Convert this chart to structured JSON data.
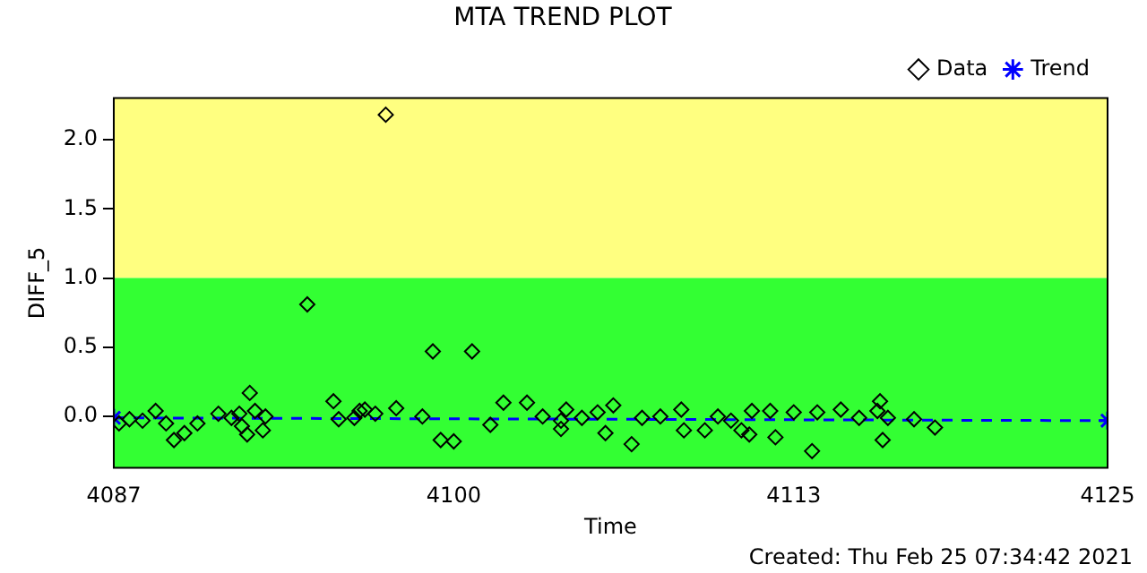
{
  "chart_data": {
    "type": "scatter",
    "title": "MTA TREND PLOT",
    "xlabel": "Time",
    "ylabel": "DIFF_5",
    "xlim": [
      4087,
      4125
    ],
    "xticks": [
      4087,
      4100,
      4113,
      4125
    ],
    "ylim": [
      -0.37,
      2.3
    ],
    "yticks": [
      {
        "value": 0,
        "label": "0.0"
      },
      {
        "value": 0.5,
        "label": "0.5"
      },
      {
        "value": 1,
        "label": "1.0"
      },
      {
        "value": 1.5,
        "label": "1.5"
      },
      {
        "value": 2,
        "label": "2.0"
      }
    ],
    "grid": false,
    "legend": "top right",
    "bands": [
      {
        "axis": "y",
        "from": 1,
        "to": 2.3,
        "color": "#ffff80"
      },
      {
        "axis": "y",
        "from": -0.37,
        "to": 1,
        "color": "#33ff33"
      }
    ],
    "annotations": [
      "Created: Thu Feb 25 07:34:42 2021"
    ],
    "series": [
      {
        "name": "Data",
        "type": "scatter",
        "color": "#000000",
        "marker": "diamond",
        "x": [
          4087.2,
          4087.6,
          4088.1,
          4088.6,
          4089.0,
          4089.3,
          4089.7,
          4090.2,
          4091.0,
          4091.5,
          4091.8,
          4091.9,
          4092.1,
          4092.2,
          4092.4,
          4092.7,
          4092.8,
          4094.4,
          4095.4,
          4095.6,
          4096.2,
          4096.4,
          4096.6,
          4097.0,
          4097.4,
          4097.8,
          4098.8,
          4099.2,
          4099.5,
          4100.0,
          4100.7,
          4101.4,
          4101.9,
          4102.8,
          4103.4,
          4104.1,
          4104.1,
          4104.3,
          4104.9,
          4105.5,
          4105.8,
          4106.1,
          4106.8,
          4107.2,
          4107.9,
          4108.7,
          4108.8,
          4109.6,
          4110.1,
          4110.6,
          4111.0,
          4111.3,
          4111.4,
          4112.1,
          4112.3,
          4113.0,
          4113.7,
          4113.9,
          4114.8,
          4115.5,
          4116.2,
          4116.3,
          4116.4,
          4116.6,
          4117.6,
          4118.4
        ],
        "values": [
          -0.05,
          -0.02,
          -0.03,
          0.04,
          -0.05,
          -0.17,
          -0.12,
          -0.05,
          0.02,
          -0.01,
          0.02,
          -0.07,
          -0.13,
          0.17,
          0.04,
          -0.1,
          0.0,
          0.81,
          0.11,
          -0.02,
          -0.01,
          0.04,
          0.05,
          0.02,
          2.18,
          0.06,
          0.0,
          0.47,
          -0.17,
          -0.18,
          0.47,
          -0.06,
          0.1,
          0.1,
          0.0,
          -0.03,
          -0.09,
          0.05,
          -0.01,
          0.03,
          -0.12,
          0.08,
          -0.2,
          -0.01,
          0.0,
          0.05,
          -0.1,
          -0.1,
          0.0,
          -0.03,
          -0.1,
          -0.13,
          0.04,
          0.04,
          -0.15,
          0.03,
          -0.25,
          0.03,
          0.05,
          -0.01,
          0.04,
          0.11,
          -0.17,
          -0.01,
          -0.02,
          -0.08
        ]
      },
      {
        "name": "Trend",
        "type": "line",
        "color": "#0000ff",
        "marker": "cross",
        "line_style": "dashed",
        "x": [
          4087,
          4125
        ],
        "values": [
          -0.01,
          -0.03
        ]
      }
    ]
  }
}
